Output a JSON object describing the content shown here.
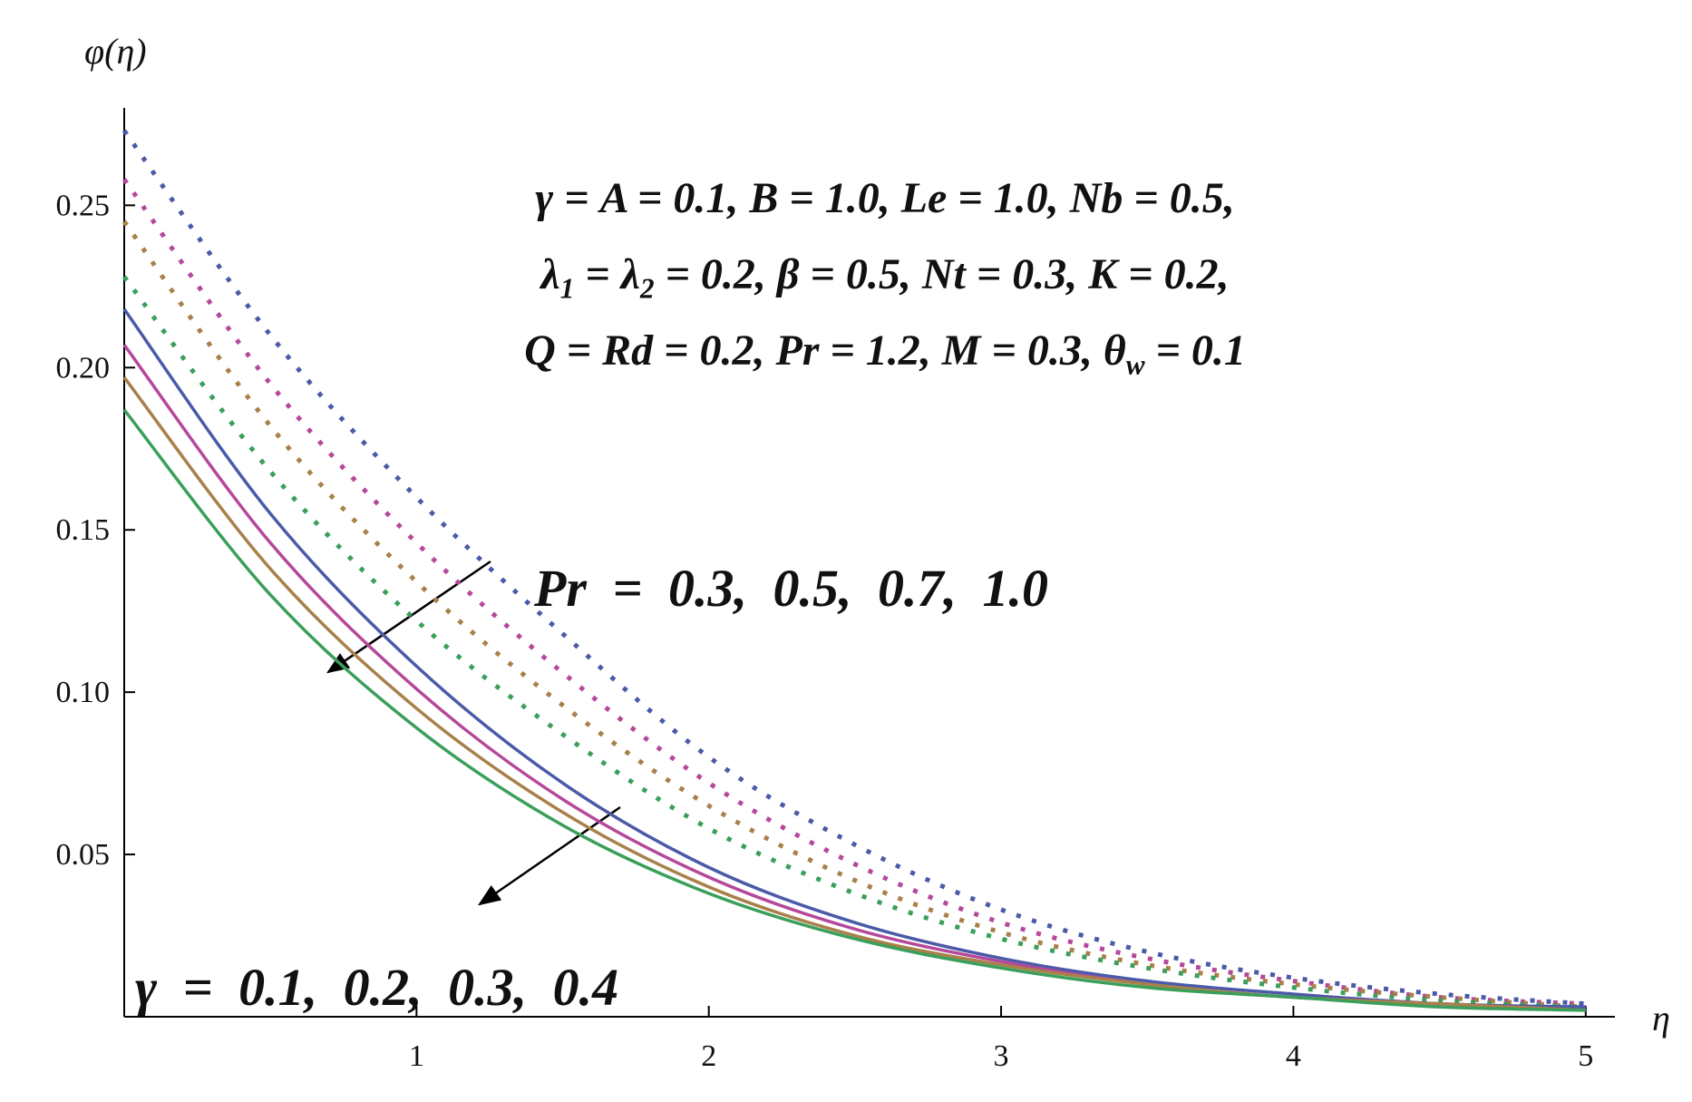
{
  "chart_data": {
    "type": "line",
    "y_label": "φ(η)",
    "x_label": "η",
    "xlim": [
      0,
      5.1
    ],
    "ylim": [
      0,
      0.28
    ],
    "xticks": [
      1,
      2,
      3,
      4,
      5
    ],
    "yticks": [
      0.05,
      {
        "value": 0.1,
        "label": "0.10"
      },
      0.15,
      {
        "value": 0.2,
        "label": "0.20"
      },
      0.25
    ],
    "x": [
      0,
      0.5,
      1,
      1.5,
      2,
      2.5,
      3,
      3.5,
      4,
      4.5,
      5
    ],
    "series": [
      {
        "color": "#4b5aa8",
        "dashed": true,
        "values": [
          0.273,
          0.21,
          0.16,
          0.118,
          0.08,
          0.053,
          0.033,
          0.02,
          0.012,
          0.007,
          0.004
        ]
      },
      {
        "color": "#b5489a",
        "dashed": true,
        "values": [
          0.258,
          0.195,
          0.146,
          0.106,
          0.072,
          0.047,
          0.029,
          0.018,
          0.011,
          0.006,
          0.004
        ]
      },
      {
        "color": "#a8804a",
        "dashed": true,
        "values": [
          0.245,
          0.182,
          0.134,
          0.096,
          0.065,
          0.042,
          0.026,
          0.016,
          0.01,
          0.006,
          0.003
        ]
      },
      {
        "color": "#3a9f5a",
        "dashed": true,
        "values": [
          0.228,
          0.168,
          0.122,
          0.087,
          0.058,
          0.038,
          0.024,
          0.015,
          0.009,
          0.005,
          0.003
        ]
      },
      {
        "color": "#4b5aa8",
        "dashed": false,
        "values": [
          0.218,
          0.155,
          0.108,
          0.072,
          0.046,
          0.029,
          0.018,
          0.011,
          0.007,
          0.004,
          0.003
        ]
      },
      {
        "color": "#b5489a",
        "dashed": false,
        "values": [
          0.207,
          0.146,
          0.101,
          0.067,
          0.043,
          0.027,
          0.017,
          0.01,
          0.006,
          0.004,
          0.002
        ]
      },
      {
        "color": "#a8804a",
        "dashed": false,
        "values": [
          0.197,
          0.138,
          0.095,
          0.063,
          0.04,
          0.025,
          0.016,
          0.01,
          0.006,
          0.004,
          0.002
        ]
      },
      {
        "color": "#3a9f5a",
        "dashed": false,
        "values": [
          0.187,
          0.13,
          0.089,
          0.059,
          0.038,
          0.024,
          0.015,
          0.009,
          0.006,
          0.003,
          0.002
        ]
      }
    ],
    "annotations": [
      {
        "segments": [
          {
            "text": "γ = A = 0.1, B = 1.0, Le = 1.0, Nb = 0.5,"
          }
        ]
      },
      {
        "segments": [
          {
            "text": "λ"
          },
          {
            "text": "1",
            "sub": true
          },
          {
            "text": " = λ"
          },
          {
            "text": "2",
            "sub": true
          },
          {
            "text": " = 0.2, β = 0.5, Nt = 0.3, K = 0.2,"
          }
        ]
      },
      {
        "segments": [
          {
            "text": "Q = Rd = 0.2, Pr = 1.2, M = 0.3, θ"
          },
          {
            "text": "w",
            "sub": true
          },
          {
            "text": " = 0.1"
          }
        ]
      },
      {
        "segments": [
          {
            "text": "Pr = 0.3, 0.5, 0.7, 1.0"
          }
        ]
      },
      {
        "segments": [
          {
            "text": "γ = 0.1, 0.2, 0.3, 0.4"
          }
        ]
      }
    ]
  }
}
